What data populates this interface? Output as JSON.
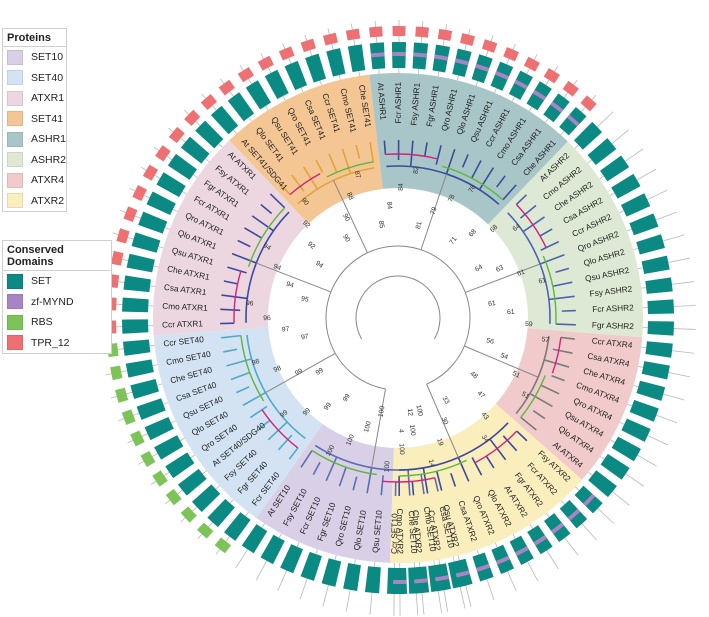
{
  "legends": {
    "proteins": {
      "title": "Proteins",
      "items": [
        {
          "label": "SET10",
          "color": "#d9cfe6"
        },
        {
          "label": "SET40",
          "color": "#d3e3f3"
        },
        {
          "label": "ATXR1",
          "color": "#ecd6e0"
        },
        {
          "label": "SET41",
          "color": "#f4c694"
        },
        {
          "label": "ASHR1",
          "color": "#a8c6c8"
        },
        {
          "label": "ASHR2",
          "color": "#dde9d4"
        },
        {
          "label": "ATXR4",
          "color": "#f1cbcb"
        },
        {
          "label": "ATXR2",
          "color": "#fbeebd"
        }
      ]
    },
    "domains": {
      "title": "Conserved Domains",
      "items": [
        {
          "label": "SET",
          "color": "#0a8a82"
        },
        {
          "label": "zf-MYND",
          "color": "#a884c4"
        },
        {
          "label": "RBS",
          "color": "#7cc458"
        },
        {
          "label": "TPR_12",
          "color": "#ee7072"
        }
      ]
    }
  },
  "tree": {
    "clades": [
      {
        "name": "SET10",
        "color": "#d9cfe6",
        "leaves": [
          "Csa SET10",
          "Cmo SET10",
          "Che SET10",
          "Ccr SET10",
          "Qsu SET10",
          "Qlo SET10",
          "Qro SET10",
          "Fgr SET10",
          "Fcr SET10",
          "Fsy SET10",
          "At SET10"
        ]
      },
      {
        "name": "SET40",
        "color": "#d3e3f3",
        "leaves": [
          "Fcr SET40",
          "Fgr SET40",
          "Fsy SET40",
          "At SET40/SDG40",
          "Qro SET40",
          "Qlo SET40",
          "Qsu SET40",
          "Csa SET40",
          "Che SET40",
          "Cmo SET40",
          "Ccr SET40"
        ]
      },
      {
        "name": "ATXR1",
        "color": "#ecd6e0",
        "leaves": [
          "Ccr ATXR1",
          "Cmo ATXR1",
          "Csa ATXR1",
          "Che ATXR1",
          "Qsu ATXR1",
          "Qlo ATXR1",
          "Qro ATXR1",
          "Fcr ATXR1",
          "Fgr ATXR1",
          "Fsy ATXR1",
          "At ATXR1"
        ]
      },
      {
        "name": "SET41",
        "color": "#f4c694",
        "leaves": [
          "At SET41/SDG41",
          "Qlo SET41",
          "Qsu SET41",
          "Qro SET41",
          "Csa SET41",
          "Ccr SET41",
          "Cmo SET41",
          "Che SET41"
        ]
      },
      {
        "name": "ASHR1",
        "color": "#a8c6c8",
        "leaves": [
          "At ASHR1",
          "Fcr ASHR1",
          "Fsy ASHR1",
          "Fgr ASHR1",
          "Qro ASHR1",
          "Qlo ASHR1",
          "Qsu ASHR1",
          "Ccr ASHR1",
          "Cmo ASHR1",
          "Csa ASHR1",
          "Che ASHR1"
        ]
      },
      {
        "name": "ASHR2",
        "color": "#dde9d4",
        "leaves": [
          "At ASHR2",
          "Cmo ASHR2",
          "Che ASHR2",
          "Csa ASHR2",
          "Ccr ASHR2",
          "Qro ASHR2",
          "Qlo ASHR2",
          "Qsu ASHR2",
          "Fsy ASHR2",
          "Fcr ASHR2",
          "Fgr ASHR2"
        ]
      },
      {
        "name": "ATXR4",
        "color": "#f1cbcb",
        "leaves": [
          "Ccr ATXR4",
          "Csa ATXR4",
          "Che ATXR4",
          "Cmo ATXR4",
          "Qro ATXR4",
          "Qsu ATXR4",
          "Qlo ATXR4",
          "At ATXR4"
        ]
      },
      {
        "name": "ATXR2",
        "color": "#fbeebd",
        "leaves": [
          "Fsy ATXR2",
          "Fcr ATXR2",
          "Fgr ATXR2",
          "At ATXR2",
          "Qlo ATXR2",
          "Qro ATXR2",
          "Csa ATXR2",
          "Qsu ATXR2",
          "Ccr ATXR2",
          "Che ATXR2",
          "Cmo ATXR2"
        ]
      }
    ],
    "bootstrap": [
      "100",
      "100",
      "100",
      "100",
      "100",
      "100",
      "100",
      "100",
      "99",
      "99",
      "99",
      "99",
      "99",
      "99",
      "98",
      "98",
      "97",
      "97",
      "96",
      "96",
      "95",
      "94",
      "94",
      "94",
      "94",
      "92",
      "92",
      "90",
      "90",
      "90",
      "88",
      "87",
      "85",
      "84",
      "84",
      "82",
      "81",
      "79",
      "78",
      "76",
      "71",
      "68",
      "68",
      "64",
      "64",
      "63",
      "61",
      "61",
      "61",
      "61",
      "59",
      "57",
      "56",
      "54",
      "51",
      "51",
      "48",
      "47",
      "43",
      "34",
      "33",
      "30",
      "19",
      "14",
      "12",
      "4"
    ]
  }
}
